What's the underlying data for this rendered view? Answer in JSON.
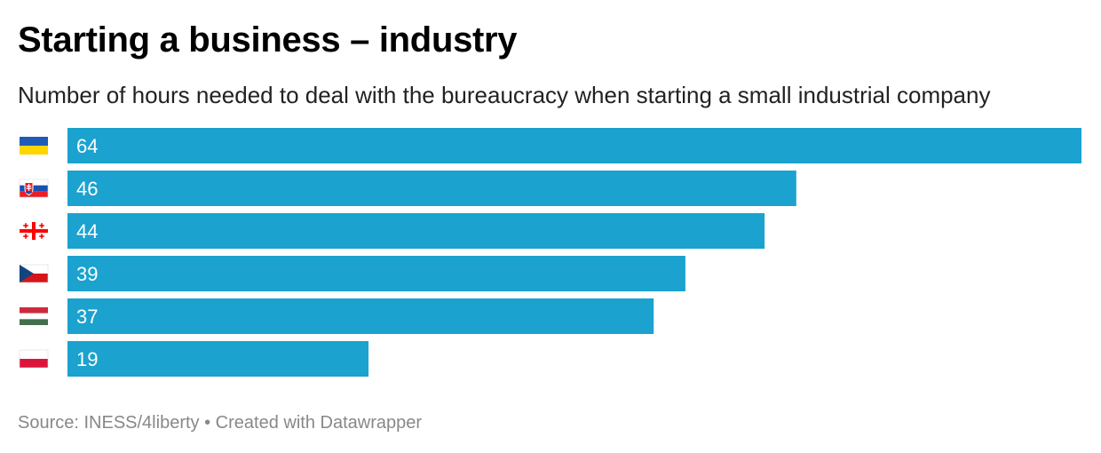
{
  "header": {
    "title": "Starting a business – industry",
    "subtitle": "Number of hours needed to deal with the bureaucracy when starting a small industrial company"
  },
  "footer": {
    "source": "Source: INESS/4liberty",
    "separator": "•",
    "credit": "Created with Datawrapper"
  },
  "chart_data": {
    "type": "bar",
    "orientation": "horizontal",
    "categories": [
      "ukraine-flag-icon",
      "slovakia-flag-icon",
      "georgia-flag-icon",
      "czechia-flag-icon",
      "hungary-flag-icon",
      "poland-flag-icon"
    ],
    "values": [
      64,
      46,
      44,
      39,
      37,
      19
    ],
    "value_labels": [
      "64",
      "46",
      "44",
      "39",
      "37",
      "19"
    ],
    "xlim": [
      0,
      64
    ],
    "bar_color": "#1ba2cf",
    "label_color": "#ffffff",
    "grid": false,
    "legend": "none"
  }
}
